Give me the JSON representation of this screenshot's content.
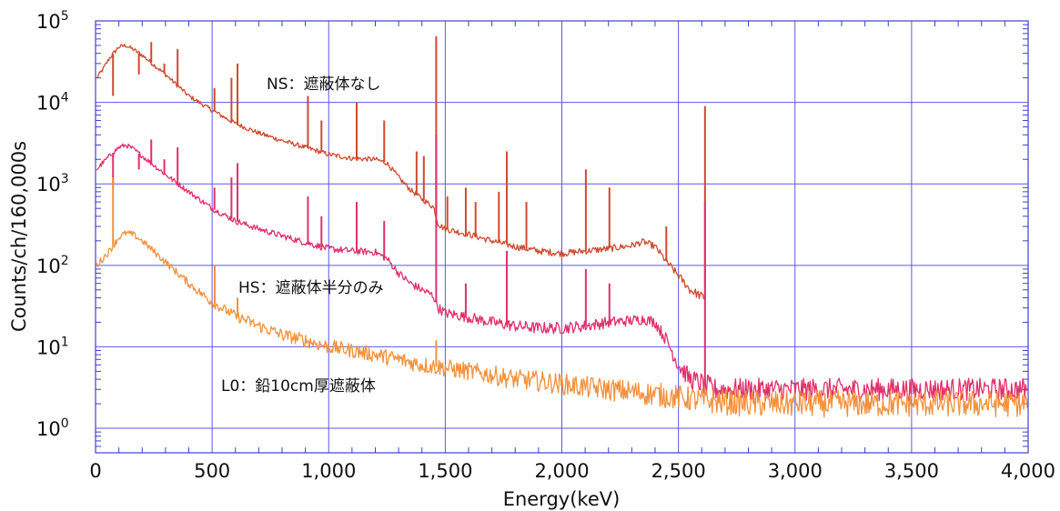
{
  "chart_data": {
    "type": "line",
    "xlabel": "Energy(keV)",
    "ylabel": "Counts/ch/160,000s",
    "xlim": [
      0,
      4000
    ],
    "ylim": [
      0.5,
      100000
    ],
    "yscale": "log",
    "grid": true,
    "x_ticks": [
      "0",
      "500",
      "1,000",
      "1,500",
      "2,000",
      "2,500",
      "3,000",
      "3,500",
      "4,000"
    ],
    "y_ticks": [
      {
        "base": "10",
        "exp": "0"
      },
      {
        "base": "10",
        "exp": "1"
      },
      {
        "base": "10",
        "exp": "2"
      },
      {
        "base": "10",
        "exp": "3"
      },
      {
        "base": "10",
        "exp": "4"
      },
      {
        "base": "10",
        "exp": "5"
      }
    ],
    "annotations": [
      "NS：遮蔽体なし",
      "HS：遮蔽体半分のみ",
      "L0：鉛10cm厚遮蔽体"
    ],
    "series": [
      {
        "color": "#cf4a2e",
        "x": [
          5,
          30,
          60,
          100,
          130,
          160,
          200,
          300,
          400,
          500,
          600,
          700,
          800,
          900,
          1000,
          1100,
          1200,
          1250,
          1300,
          1350,
          1400,
          1450,
          1470,
          1500,
          1600,
          1700,
          1800,
          1900,
          2000,
          2100,
          2200,
          2300,
          2350,
          2400,
          2450,
          2500,
          2550,
          2610
        ],
        "values": [
          20000,
          25000,
          35000,
          48000,
          50000,
          45000,
          38000,
          22000,
          12000,
          8000,
          5500,
          4200,
          3400,
          2800,
          2300,
          2050,
          2000,
          1800,
          1200,
          850,
          650,
          520,
          320,
          280,
          240,
          200,
          170,
          150,
          140,
          150,
          160,
          175,
          195,
          170,
          110,
          75,
          50,
          40
        ],
        "peaks": [
          [
            75,
            12000
          ],
          [
            186,
            22000
          ],
          [
            239,
            55000
          ],
          [
            295,
            30000
          ],
          [
            352,
            45000
          ],
          [
            510,
            15000
          ],
          [
            583,
            20000
          ],
          [
            609,
            30000
          ],
          [
            911,
            12000
          ],
          [
            969,
            6000
          ],
          [
            1120,
            10000
          ],
          [
            1238,
            6000
          ],
          [
            1377,
            2500
          ],
          [
            1408,
            2200
          ],
          [
            1461,
            65000
          ],
          [
            1509,
            700
          ],
          [
            1588,
            900
          ],
          [
            1630,
            600
          ],
          [
            1730,
            800
          ],
          [
            1764,
            2500
          ],
          [
            1848,
            600
          ],
          [
            2103,
            1500
          ],
          [
            2204,
            900
          ],
          [
            2448,
            300
          ],
          [
            2614,
            9000
          ]
        ]
      },
      {
        "color": "#e0306a",
        "x": [
          5,
          30,
          60,
          100,
          130,
          160,
          200,
          300,
          400,
          500,
          600,
          700,
          800,
          900,
          1000,
          1100,
          1200,
          1250,
          1300,
          1350,
          1400,
          1450,
          1470,
          1500,
          1600,
          1700,
          1800,
          1900,
          2000,
          2100,
          2200,
          2300,
          2350,
          2400,
          2450,
          2500,
          2550,
          2610,
          2650,
          2800,
          3000,
          3200,
          3400,
          3600,
          3800,
          4000
        ],
        "values": [
          1500,
          1800,
          2200,
          2800,
          3000,
          2700,
          2200,
          1300,
          800,
          500,
          350,
          280,
          230,
          190,
          160,
          150,
          145,
          120,
          80,
          60,
          50,
          42,
          30,
          26,
          23,
          20,
          18,
          17,
          17,
          18,
          20,
          21,
          22,
          20,
          12,
          6,
          4,
          3.5,
          3,
          3,
          3,
          3,
          3,
          3,
          3,
          3
        ],
        "peaks": [
          [
            75,
            900
          ],
          [
            186,
            1500
          ],
          [
            239,
            3500
          ],
          [
            295,
            2000
          ],
          [
            352,
            2800
          ],
          [
            510,
            900
          ],
          [
            583,
            1200
          ],
          [
            609,
            1800
          ],
          [
            911,
            700
          ],
          [
            969,
            400
          ],
          [
            1120,
            600
          ],
          [
            1238,
            350
          ],
          [
            1461,
            4000
          ],
          [
            1588,
            60
          ],
          [
            1764,
            150
          ],
          [
            2103,
            90
          ],
          [
            2204,
            60
          ],
          [
            2614,
            600
          ]
        ]
      },
      {
        "color": "#f3913c",
        "x": [
          5,
          30,
          60,
          80,
          100,
          130,
          160,
          200,
          300,
          400,
          500,
          600,
          700,
          800,
          900,
          1000,
          1100,
          1200,
          1300,
          1400,
          1500,
          1600,
          1700,
          1800,
          1900,
          2000,
          2100,
          2200,
          2300,
          2400,
          2500,
          2600,
          2700,
          2800,
          3000,
          3200,
          3400,
          3600,
          3800,
          4000
        ],
        "values": [
          100,
          120,
          150,
          180,
          220,
          250,
          240,
          200,
          110,
          60,
          35,
          24,
          18,
          14,
          12,
          10,
          9,
          8,
          7,
          6,
          5.5,
          5,
          4.5,
          4,
          3.8,
          3.5,
          3.2,
          3,
          2.8,
          2.6,
          2.4,
          2.2,
          2.1,
          2,
          2,
          2,
          2,
          2,
          2,
          2
        ],
        "peaks": [
          [
            75,
            1200
          ],
          [
            511,
            100
          ],
          [
            609,
            40
          ],
          [
            1461,
            12
          ]
        ]
      }
    ]
  }
}
